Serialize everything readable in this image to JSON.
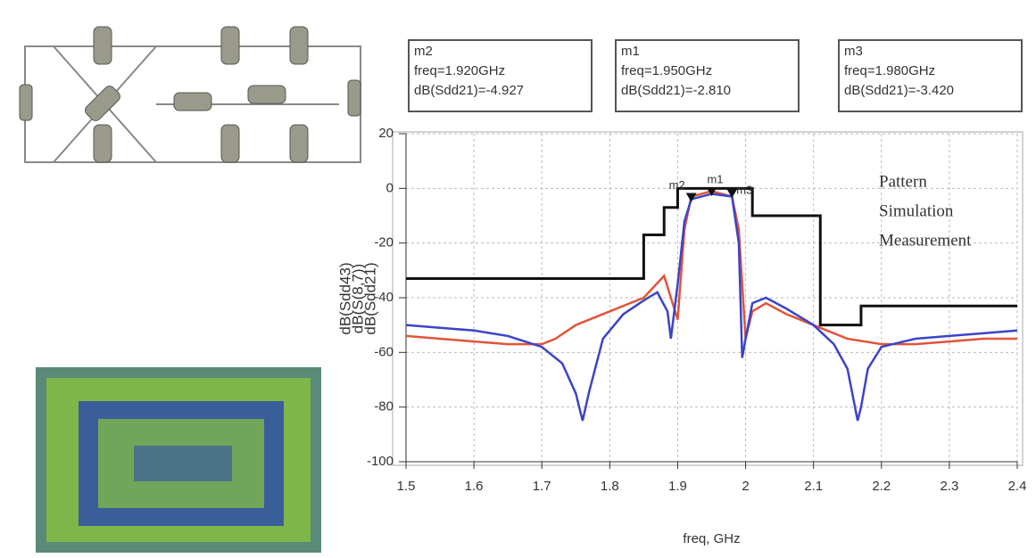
{
  "chart_data": {
    "type": "line",
    "xlabel": "freq, GHz",
    "ylabels": [
      {
        "text": "dB(Sdd43)",
        "color": "#3a44c8"
      },
      {
        "text": "dB(S(8,7))",
        "color": "#111111"
      },
      {
        "text": "dB(Sdd21)",
        "color": "#e0553a"
      }
    ],
    "xlim": [
      1.5,
      2.4
    ],
    "xticks": [
      1.5,
      1.6,
      1.7,
      1.8,
      1.9,
      2.0,
      2.1,
      2.2,
      2.3,
      2.4
    ],
    "ylim": [
      -100,
      20
    ],
    "yticks": [
      20,
      0,
      -20,
      -40,
      -60,
      -80,
      -100
    ],
    "grid": true,
    "legend": "upper right",
    "series": [
      {
        "name": "Pattern",
        "color": "#111111",
        "x": [
          1.5,
          1.85,
          1.85,
          1.88,
          1.88,
          1.9,
          1.9,
          2.01,
          2.01,
          2.11,
          2.11,
          2.17,
          2.17,
          2.4
        ],
        "values": [
          -33,
          -33,
          -17,
          -17,
          -7,
          -7,
          0,
          0,
          -10,
          -10,
          -50,
          -50,
          -43,
          -43
        ]
      },
      {
        "name": "Simulation",
        "color": "#3a44c8",
        "x": [
          1.5,
          1.55,
          1.6,
          1.65,
          1.7,
          1.73,
          1.75,
          1.76,
          1.77,
          1.79,
          1.82,
          1.85,
          1.87,
          1.885,
          1.89,
          1.9,
          1.91,
          1.92,
          1.95,
          1.98,
          1.99,
          1.995,
          2.0,
          2.01,
          2.03,
          2.06,
          2.1,
          2.13,
          2.15,
          2.165,
          2.17,
          2.18,
          2.2,
          2.25,
          2.3,
          2.35,
          2.4
        ],
        "values": [
          -50,
          -51,
          -52,
          -54,
          -58,
          -64,
          -75,
          -85,
          -74,
          -55,
          -46,
          -41,
          -38,
          -45,
          -55,
          -35,
          -12,
          -4,
          -2,
          -3,
          -20,
          -62,
          -55,
          -42,
          -40,
          -44,
          -50,
          -57,
          -66,
          -85,
          -80,
          -66,
          -58,
          -55,
          -54,
          -53,
          -52
        ]
      },
      {
        "name": "Measurement",
        "color": "#e0553a",
        "x": [
          1.5,
          1.55,
          1.6,
          1.65,
          1.7,
          1.72,
          1.75,
          1.8,
          1.85,
          1.88,
          1.89,
          1.9,
          1.91,
          1.92,
          1.95,
          1.98,
          1.99,
          2.0,
          2.01,
          2.03,
          2.06,
          2.1,
          2.15,
          2.2,
          2.25,
          2.3,
          2.35,
          2.4
        ],
        "values": [
          -54,
          -55,
          -56,
          -57,
          -57,
          -55,
          -50,
          -45,
          -40,
          -32,
          -40,
          -48,
          -15,
          -3,
          -1,
          -3,
          -15,
          -55,
          -45,
          -42,
          -46,
          -50,
          -55,
          -57,
          -57,
          -56,
          -55,
          -55
        ]
      }
    ],
    "markers": [
      {
        "name": "m2",
        "freq": 1.92,
        "value": -4.927,
        "freq_label": "freq=1.920GHz",
        "value_label": "dB(Sdd21)=-4.927"
      },
      {
        "name": "m1",
        "freq": 1.95,
        "value": -2.81,
        "freq_label": "freq=1.950GHz",
        "value_label": "dB(Sdd21)=-2.810"
      },
      {
        "name": "m3",
        "freq": 1.98,
        "value": -3.42,
        "freq_label": "freq=1.980GHz",
        "value_label": "dB(Sdd21)=-3.420"
      }
    ]
  }
}
